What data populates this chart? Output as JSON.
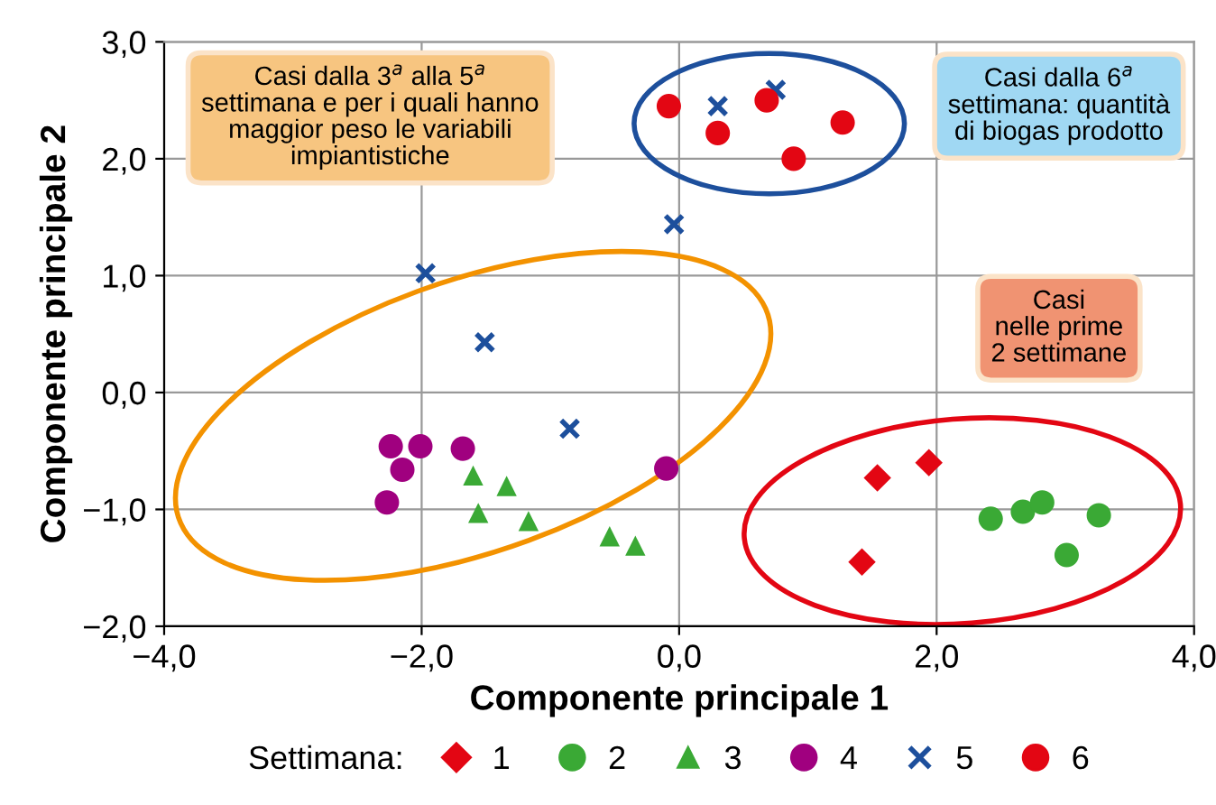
{
  "chart_data": {
    "type": "scatter",
    "xlabel": "Componente principale 1",
    "ylabel": "Componente principale 2",
    "legend_title": "Settimana:",
    "legend": "bottom",
    "grid": true,
    "xlim": [
      -4.0,
      4.0
    ],
    "ylim": [
      -2.0,
      3.0
    ],
    "xticks": [
      {
        "value": -4.0,
        "label": "−4,0"
      },
      {
        "value": -2.0,
        "label": "−2,0"
      },
      {
        "value": 0.0,
        "label": "0,0"
      },
      {
        "value": 2.0,
        "label": "2,0"
      },
      {
        "value": 4.0,
        "label": "4,0"
      }
    ],
    "yticks": [
      {
        "value": -2.0,
        "label": "−2,0"
      },
      {
        "value": -1.0,
        "label": "−1,0"
      },
      {
        "value": 0.0,
        "label": "0,0"
      },
      {
        "value": 1.0,
        "label": "1,0"
      },
      {
        "value": 2.0,
        "label": "2,0"
      },
      {
        "value": 3.0,
        "label": "3,0"
      }
    ],
    "series": [
      {
        "name": "1",
        "color": "#e30613",
        "marker": "diamond",
        "x": [
          1.54,
          1.94,
          1.42
        ],
        "values": [
          -0.73,
          -0.6,
          -1.45
        ]
      },
      {
        "name": "2",
        "color": "#3aa935",
        "marker": "circle",
        "x": [
          2.42,
          2.67,
          2.82,
          3.01,
          3.26
        ],
        "values": [
          -1.08,
          -1.02,
          -0.94,
          -1.39,
          -1.05
        ]
      },
      {
        "name": "3",
        "color": "#3aa935",
        "marker": "triangle",
        "x": [
          -1.6,
          -1.34,
          -1.56,
          -1.17,
          -0.54,
          -0.34
        ],
        "values": [
          -0.71,
          -0.8,
          -1.03,
          -1.1,
          -1.23,
          -1.31
        ]
      },
      {
        "name": "4",
        "color": "#a0007f",
        "marker": "circle",
        "x": [
          -2.24,
          -2.01,
          -1.68,
          -2.15,
          -2.27,
          -0.1
        ],
        "values": [
          -0.46,
          -0.46,
          -0.48,
          -0.66,
          -0.94,
          -0.65
        ]
      },
      {
        "name": "5",
        "color": "#1d4f9c",
        "marker": "cross",
        "x": [
          -1.97,
          -1.51,
          -0.85,
          -0.04,
          0.3,
          0.75
        ],
        "values": [
          1.02,
          0.43,
          -0.31,
          1.44,
          2.45,
          2.59
        ]
      },
      {
        "name": "6",
        "color": "#e30613",
        "marker": "circle",
        "x": [
          -0.08,
          0.3,
          0.68,
          0.89,
          1.27
        ],
        "values": [
          2.45,
          2.22,
          2.5,
          2.0,
          2.31
        ]
      }
    ],
    "annotations": [
      "Casi dalla 3$^{a}$ alla 5$^{a}$\nsettimana e per i quali hanno\nmaggior peso le variabili\nimpiantistiche",
      "Casi dalla 6$^{a}$\nsettimana: quantità\ndi biogas prodotto",
      "Casi\nnelle prime\n2 settimane"
    ]
  }
}
